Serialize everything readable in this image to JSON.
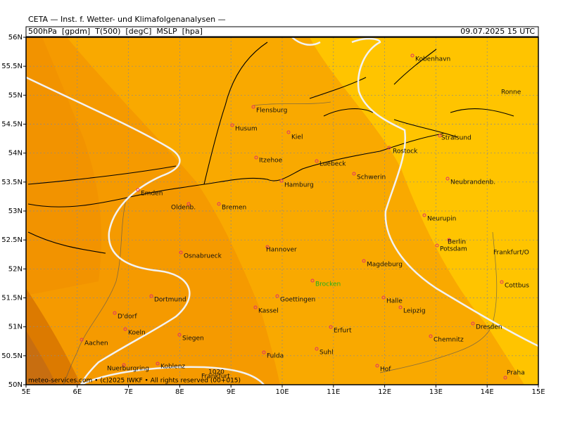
{
  "header": {
    "title": "CETA — Inst. f. Wetter- und Klimafolgenanalysen —",
    "fields": [
      "500hPa",
      "[gpdm]",
      "T(500)",
      "[degC]",
      "MSLP",
      "[hpa]"
    ],
    "datetime": "09.07.2025 15 UTC"
  },
  "map": {
    "lat_ticks": [
      {
        "value": 50,
        "label": "50N"
      },
      {
        "value": 50.5,
        "label": "50.5N"
      },
      {
        "value": 51,
        "label": "51N"
      },
      {
        "value": 51.5,
        "label": "51.5N"
      },
      {
        "value": 52,
        "label": "52N"
      },
      {
        "value": 52.5,
        "label": "52.5N"
      },
      {
        "value": 53,
        "label": "53N"
      },
      {
        "value": 53.5,
        "label": "53.5N"
      },
      {
        "value": 54,
        "label": "54N"
      },
      {
        "value": 54.5,
        "label": "54.5N"
      },
      {
        "value": 55,
        "label": "55N"
      },
      {
        "value": 55.5,
        "label": "55.5N"
      },
      {
        "value": 56,
        "label": "56N"
      }
    ],
    "lon_ticks": [
      {
        "value": 5,
        "label": "5E"
      },
      {
        "value": 6,
        "label": "6E"
      },
      {
        "value": 7,
        "label": "7E"
      },
      {
        "value": 8,
        "label": "8E"
      },
      {
        "value": 9,
        "label": "9E"
      },
      {
        "value": 10,
        "label": "10E"
      },
      {
        "value": 11,
        "label": "11E"
      },
      {
        "value": 12,
        "label": "12E"
      },
      {
        "value": 13,
        "label": "13E"
      },
      {
        "value": 14,
        "label": "14E"
      },
      {
        "value": 15,
        "label": "15E"
      }
    ],
    "cities": [
      "Kobenhavn",
      "Ronne",
      "Flensburg",
      "Husum",
      "Kiel",
      "Stralsund",
      "Rostock",
      "Itzehoe",
      "Luebeck",
      "Schwerin",
      "Neubrandenb.",
      "Hamburg",
      "Emden",
      "Oldenb.",
      "Bremen",
      "Neurupin",
      "Berlin",
      "Potsdam",
      "Hannover",
      "Osnabrueck",
      "Frankfurt/O",
      "Magdeburg",
      "Brocken",
      "Cottbus",
      "Dortmund",
      "Goettingen",
      "Halle",
      "Kassel",
      "Leipzig",
      "D'dorf",
      "Erfurt",
      "Dresden",
      "Koeln",
      "Siegen",
      "Chemnitz",
      "Aachen",
      "Suhl",
      "Fulda",
      "Nuerburgring",
      "Koblenz",
      "Hof",
      "Praha",
      "Frankfurt"
    ],
    "isobar_label": "1020"
  },
  "footer": "meteo-services.com • (c)2025 IWKF • All rights reserved (00+015)"
}
